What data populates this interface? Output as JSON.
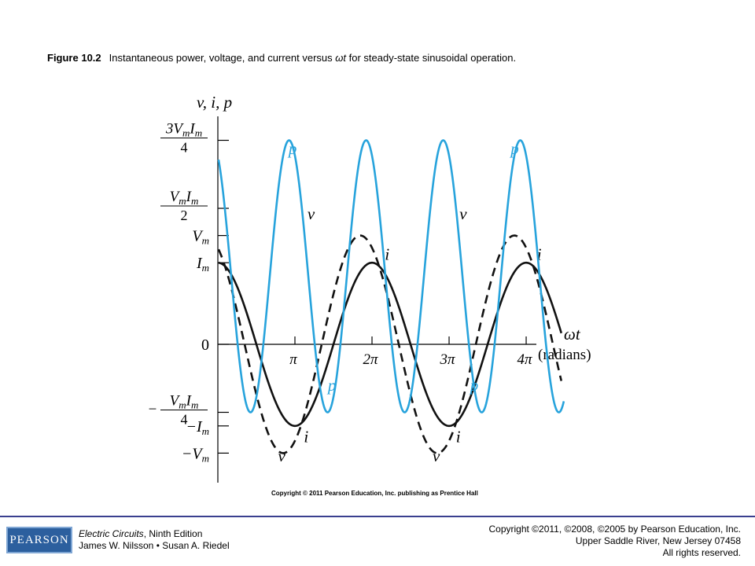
{
  "caption": {
    "figure_label": "Figure 10.2",
    "text_before": "Instantaneous power, voltage, and current versus ",
    "text_var": "ωt",
    "text_after": " for steady-state  sinusoidal operation."
  },
  "chart_copyright": "Copyright © 2011 Pearson Education, Inc. publishing as Prentice Hall",
  "footer": {
    "logo": "PEARSON",
    "book_title": "Electric Circuits",
    "book_edition": ", Ninth Edition",
    "authors": "James W. Nilsson • Susan A. Riedel",
    "copyright_lines": [
      "Copyright ©2011, ©2008, ©2005 by Pearson Education, Inc.",
      "Upper Saddle River, New Jersey 07458",
      "All rights reserved."
    ]
  },
  "chart_data": {
    "type": "line",
    "ylabel": "v, i, p",
    "xlabel": "ωt",
    "xlabel_units": "(radians)",
    "x_ticks": [
      {
        "value": 3.14159,
        "label": "π"
      },
      {
        "value": 6.28319,
        "label": "2π"
      },
      {
        "value": 9.42478,
        "label": "3π"
      },
      {
        "value": 12.56637,
        "label": "4π"
      }
    ],
    "y_ticks": [
      {
        "value": 0.75,
        "num": "3V",
        "num_sub": "m",
        "num2": "I",
        "num2_sub": "m",
        "den": "4",
        "sign": ""
      },
      {
        "value": 0.5,
        "num": "V",
        "num_sub": "m",
        "num2": "I",
        "num2_sub": "m",
        "den": "2",
        "sign": ""
      },
      {
        "value": 0.4,
        "label": "V",
        "sub": "m",
        "sign": ""
      },
      {
        "value": 0.3,
        "label": "I",
        "sub": "m",
        "sign": ""
      },
      {
        "value": 0,
        "label": "0",
        "sign": ""
      },
      {
        "value": -0.25,
        "num": "V",
        "num_sub": "m",
        "num2": "I",
        "num2_sub": "m",
        "den": "4",
        "sign": "−"
      },
      {
        "value": -0.3,
        "label": "I",
        "sub": "m",
        "sign": "−"
      },
      {
        "value": -0.4,
        "label": "V",
        "sub": "m",
        "sign": "−"
      }
    ],
    "xlim": [
      0,
      14.2
    ],
    "ylim": [
      -0.47,
      0.85
    ],
    "series": [
      {
        "name": "v",
        "style": "dashed",
        "color": "#111111",
        "amplitude": 0.4,
        "phase": 0.48,
        "labels": [
          {
            "text": "v",
            "x": 3.8,
            "y": 0.46
          },
          {
            "text": "v",
            "x": 10.0,
            "y": 0.46
          },
          {
            "text": "v",
            "x": 2.6,
            "y": -0.43
          },
          {
            "text": "v",
            "x": 8.9,
            "y": -0.43
          }
        ]
      },
      {
        "name": "i",
        "style": "solid",
        "color": "#111111",
        "amplitude": 0.3,
        "phase": 0,
        "labels": [
          {
            "text": "i",
            "x": 6.9,
            "y": 0.31
          },
          {
            "text": "i",
            "x": 13.1,
            "y": 0.31
          },
          {
            "text": "i",
            "x": 3.6,
            "y": -0.36
          },
          {
            "text": "i",
            "x": 9.8,
            "y": -0.36
          }
        ]
      },
      {
        "name": "p",
        "style": "solid",
        "color": "#27a3dc",
        "amplitude": 0.5,
        "offset": 0.25,
        "phase": 0.48,
        "labels": [
          {
            "text": "p",
            "x": 3.05,
            "y": 0.7
          },
          {
            "text": "p",
            "x": 12.1,
            "y": 0.7
          },
          {
            "text": "p",
            "x": 4.65,
            "y": -0.17
          },
          {
            "text": "p",
            "x": 10.45,
            "y": -0.17
          }
        ]
      }
    ]
  }
}
